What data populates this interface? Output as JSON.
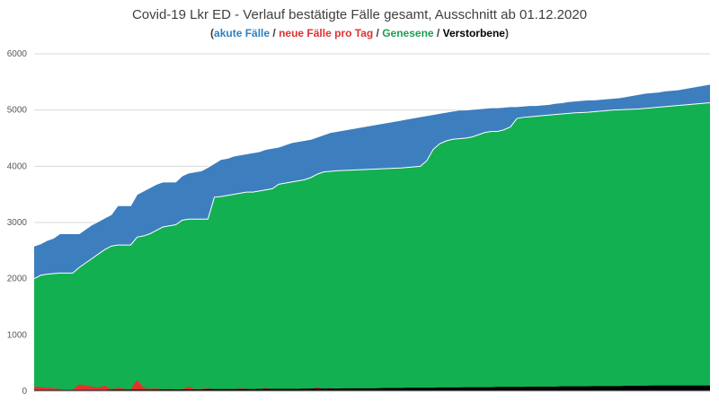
{
  "chart_data": {
    "type": "area",
    "title": "Covid-19 Lkr ED - Verlauf bestätigte Fälle gesamt, Ausschnitt ab 01.12.2020",
    "subtitle_parts": [
      {
        "text": "(",
        "color": "#404040"
      },
      {
        "text": "akute Fälle",
        "color": "#2f7fc1"
      },
      {
        "text": " / ",
        "color": "#404040"
      },
      {
        "text": "neue Fälle pro Tag",
        "color": "#e03030"
      },
      {
        "text": " / ",
        "color": "#404040"
      },
      {
        "text": "Genesene",
        "color": "#1f9e52"
      },
      {
        "text": " / ",
        "color": "#404040"
      },
      {
        "text": "Verstorbene",
        "color": "#000000"
      },
      {
        "text": ")",
        "color": "#404040"
      }
    ],
    "ylim": [
      0,
      6000
    ],
    "y_ticks": [
      "0",
      "1000",
      "2000",
      "3000",
      "4000",
      "5000",
      "6000"
    ],
    "grid": true,
    "colors": {
      "total": "#3d7ebf",
      "recovered": "#12b050",
      "new_cases": "#e8302a",
      "deaths": "#000000"
    },
    "series": {
      "total": [
        2580,
        2620,
        2680,
        2720,
        2800,
        2800,
        2800,
        2800,
        2880,
        2960,
        3020,
        3080,
        3140,
        3300,
        3300,
        3300,
        3500,
        3560,
        3620,
        3680,
        3720,
        3720,
        3720,
        3830,
        3880,
        3900,
        3920,
        3980,
        4050,
        4120,
        4140,
        4180,
        4200,
        4220,
        4240,
        4260,
        4300,
        4320,
        4340,
        4380,
        4420,
        4440,
        4460,
        4480,
        4520,
        4560,
        4600,
        4620,
        4640,
        4660,
        4680,
        4700,
        4720,
        4740,
        4760,
        4780,
        4800,
        4820,
        4840,
        4860,
        4880,
        4900,
        4920,
        4940,
        4960,
        4980,
        5000,
        5000,
        5010,
        5020,
        5030,
        5040,
        5040,
        5050,
        5060,
        5060,
        5070,
        5080,
        5080,
        5090,
        5100,
        5120,
        5130,
        5150,
        5160,
        5170,
        5180,
        5180,
        5190,
        5200,
        5210,
        5220,
        5240,
        5260,
        5280,
        5300,
        5310,
        5320,
        5340,
        5350,
        5360,
        5380,
        5400,
        5420,
        5440,
        5460
      ],
      "recovered": [
        2000,
        2060,
        2080,
        2090,
        2100,
        2100,
        2100,
        2200,
        2280,
        2360,
        2440,
        2520,
        2580,
        2600,
        2600,
        2600,
        2740,
        2760,
        2800,
        2860,
        2920,
        2940,
        2960,
        3040,
        3060,
        3060,
        3060,
        3060,
        3450,
        3460,
        3480,
        3500,
        3520,
        3540,
        3540,
        3560,
        3580,
        3600,
        3680,
        3700,
        3720,
        3740,
        3760,
        3800,
        3860,
        3900,
        3910,
        3920,
        3925,
        3930,
        3935,
        3940,
        3945,
        3950,
        3955,
        3960,
        3965,
        3970,
        3980,
        3990,
        4000,
        4100,
        4300,
        4400,
        4450,
        4480,
        4490,
        4500,
        4520,
        4560,
        4600,
        4620,
        4620,
        4650,
        4700,
        4850,
        4870,
        4880,
        4890,
        4900,
        4910,
        4920,
        4930,
        4940,
        4950,
        4955,
        4960,
        4970,
        4980,
        4990,
        5000,
        5005,
        5010,
        5015,
        5020,
        5030,
        5040,
        5050,
        5060,
        5070,
        5080,
        5090,
        5100,
        5110,
        5120,
        5130
      ],
      "new_cases": [
        80,
        70,
        60,
        50,
        40,
        10,
        30,
        120,
        100,
        80,
        60,
        100,
        30,
        60,
        40,
        30,
        200,
        60,
        40,
        50,
        30,
        40,
        20,
        30,
        80,
        30,
        40,
        50,
        30,
        20,
        40,
        30,
        50,
        40,
        30,
        20,
        60,
        30,
        40,
        20,
        30,
        20,
        30,
        20,
        80,
        30,
        60,
        20,
        40,
        30,
        20,
        30,
        40,
        20,
        30,
        60,
        20,
        30,
        40,
        20,
        30,
        20,
        40,
        30,
        20,
        30,
        40,
        20,
        30,
        20,
        40,
        30,
        20,
        30,
        20,
        40,
        30,
        50,
        20,
        30,
        20,
        40,
        20,
        30,
        50,
        20,
        30,
        40,
        20,
        30,
        20,
        40,
        30,
        20,
        30,
        20,
        40,
        20,
        30,
        20,
        40,
        30,
        20,
        30,
        40,
        20
      ],
      "deaths": [
        20,
        20,
        20,
        20,
        20,
        20,
        20,
        20,
        20,
        20,
        20,
        20,
        25,
        25,
        25,
        25,
        25,
        25,
        25,
        25,
        30,
        30,
        30,
        30,
        30,
        30,
        30,
        35,
        35,
        35,
        35,
        35,
        35,
        35,
        35,
        40,
        40,
        40,
        40,
        40,
        40,
        40,
        45,
        45,
        45,
        45,
        45,
        45,
        50,
        50,
        50,
        50,
        50,
        50,
        55,
        55,
        55,
        55,
        60,
        60,
        60,
        60,
        60,
        65,
        65,
        65,
        65,
        70,
        70,
        70,
        70,
        70,
        75,
        75,
        75,
        75,
        75,
        80,
        80,
        80,
        80,
        80,
        85,
        85,
        85,
        85,
        85,
        90,
        90,
        90,
        90,
        90,
        95,
        95,
        95,
        95,
        100,
        100,
        100,
        100,
        100,
        100,
        100,
        100,
        100,
        100
      ]
    }
  }
}
